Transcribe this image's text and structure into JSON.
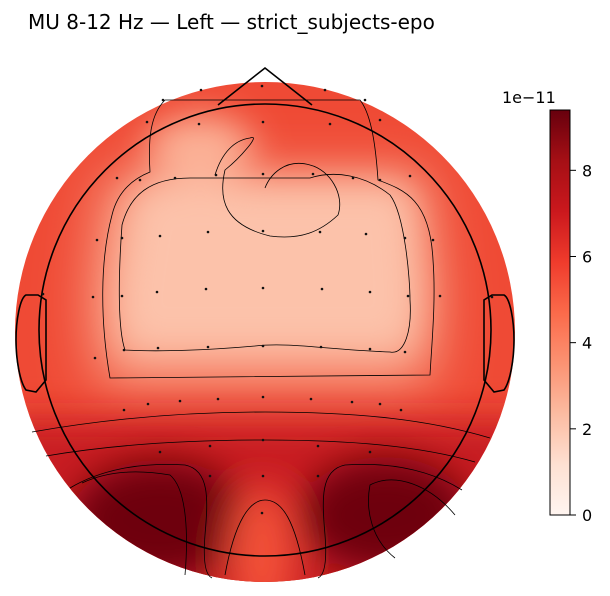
{
  "chart_data": {
    "type": "heatmap",
    "title": "MU 8-12 Hz — Left — strict_subjects-epo",
    "colormap": "Reds",
    "colorbar": {
      "offset_label": "1e−11",
      "ticks": [
        0,
        2,
        4,
        6,
        8
      ],
      "range": [
        0,
        9.4
      ]
    },
    "contour_levels": [
      2.5,
      3.2,
      4.3,
      5.6,
      7.2
    ],
    "regions": [
      {
        "name": "frontal-central plateau",
        "value": 2.0
      },
      {
        "name": "frontal notch",
        "value": 2.6
      },
      {
        "name": "head periphery",
        "value": 4.5
      },
      {
        "name": "posterior band",
        "value": 7.6
      },
      {
        "name": "left occipital-temporal peak",
        "value": 9.3
      },
      {
        "name": "right occipital-temporal peak",
        "value": 9.3
      },
      {
        "name": "midline occipital",
        "value": 4.3
      }
    ]
  },
  "colors": {
    "colormap_stops": [
      "#fff5f0",
      "#fee0d2",
      "#fcbba1",
      "#fc9272",
      "#fb6a4a",
      "#ef3b2c",
      "#cb181d",
      "#a50f15",
      "#67000d"
    ]
  }
}
